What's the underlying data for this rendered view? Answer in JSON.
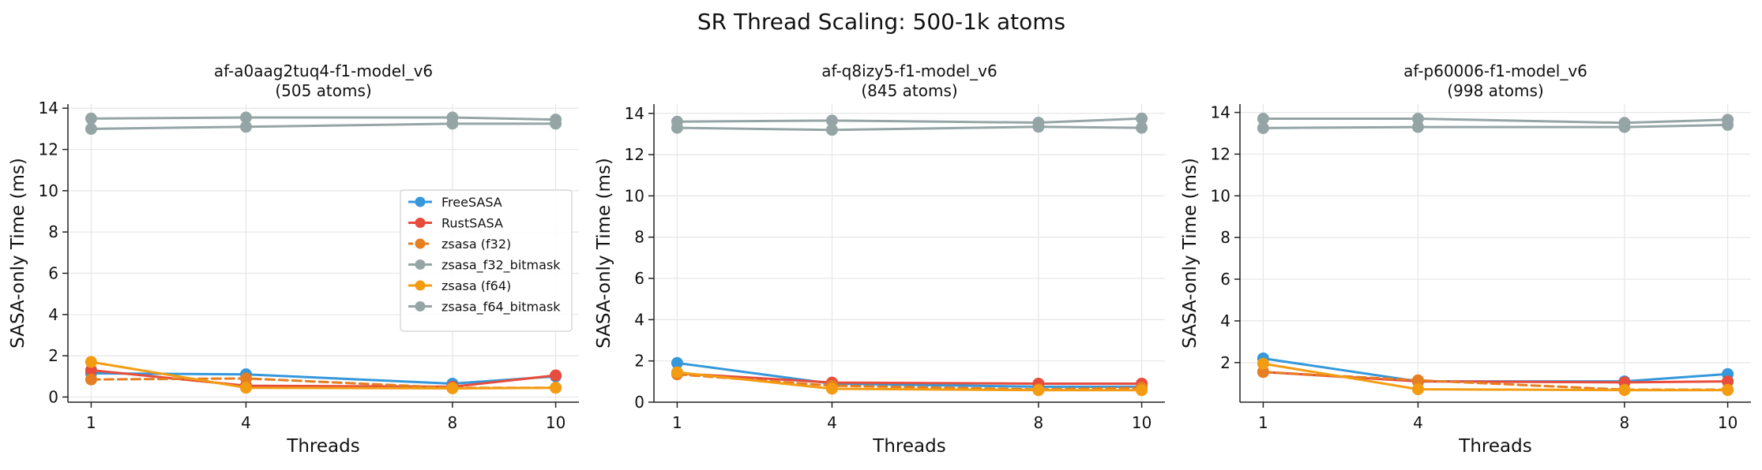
{
  "figure": {
    "title": "SR Thread Scaling: 500-1k atoms"
  },
  "chart_data": [
    {
      "type": "line",
      "title_line1": "af-a0aag2tuq4-f1-model_v6",
      "title_line2": "(505 atoms)",
      "xlabel": "Threads",
      "ylabel": "SASA-only Time (ms)",
      "x": [
        1,
        4,
        8,
        10
      ],
      "xlim": [
        0.55,
        10.45
      ],
      "ylim": [
        -0.25,
        14.2
      ],
      "yticks": [
        0,
        2,
        4,
        6,
        8,
        10,
        12,
        14
      ],
      "grid": true,
      "legend": "center-right",
      "series": [
        {
          "name": "FreeSASA",
          "color": "#3498db",
          "dash": "solid",
          "values": [
            1.15,
            1.1,
            0.65,
            1.0
          ]
        },
        {
          "name": "RustSASA",
          "color": "#e74c3c",
          "dash": "solid",
          "values": [
            1.3,
            0.55,
            0.5,
            1.05
          ]
        },
        {
          "name": "zsasa (f32)",
          "color": "#e67e22",
          "dash": "dashed",
          "values": [
            0.85,
            0.9,
            0.45,
            0.45
          ]
        },
        {
          "name": "zsasa_f32_bitmask",
          "color": "#95a5a6",
          "dash": "solid",
          "values": [
            13.0,
            13.1,
            13.25,
            13.25
          ]
        },
        {
          "name": "zsasa (f64)",
          "color": "#f39c12",
          "dash": "solid",
          "values": [
            1.7,
            0.45,
            0.42,
            0.45
          ]
        },
        {
          "name": "zsasa_f64_bitmask",
          "color": "#95a5a6",
          "dash": "solid",
          "values": [
            13.5,
            13.55,
            13.55,
            13.45
          ]
        }
      ]
    },
    {
      "type": "line",
      "title_line1": "af-q8izy5-f1-model_v6",
      "title_line2": "(845 atoms)",
      "xlabel": "Threads",
      "ylabel": "SASA-only Time (ms)",
      "x": [
        1,
        4,
        8,
        10
      ],
      "xlim": [
        0.55,
        10.45
      ],
      "ylim": [
        0.0,
        14.45
      ],
      "yticks": [
        0,
        2,
        4,
        6,
        8,
        10,
        12,
        14
      ],
      "grid": true,
      "legend": "",
      "series": [
        {
          "name": "FreeSASA",
          "color": "#3498db",
          "dash": "solid",
          "values": [
            1.9,
            0.9,
            0.75,
            0.75
          ]
        },
        {
          "name": "RustSASA",
          "color": "#e74c3c",
          "dash": "solid",
          "values": [
            1.4,
            0.95,
            0.9,
            0.9
          ]
        },
        {
          "name": "zsasa (f32)",
          "color": "#e67e22",
          "dash": "dashed",
          "values": [
            1.35,
            0.8,
            0.62,
            0.7
          ]
        },
        {
          "name": "zsasa_f32_bitmask",
          "color": "#95a5a6",
          "dash": "solid",
          "values": [
            13.3,
            13.2,
            13.35,
            13.3
          ]
        },
        {
          "name": "zsasa (f64)",
          "color": "#f39c12",
          "dash": "solid",
          "values": [
            1.45,
            0.65,
            0.58,
            0.58
          ]
        },
        {
          "name": "zsasa_f64_bitmask",
          "color": "#95a5a6",
          "dash": "solid",
          "values": [
            13.6,
            13.65,
            13.55,
            13.75
          ]
        }
      ]
    },
    {
      "type": "line",
      "title_line1": "af-p60006-f1-model_v6",
      "title_line2": "(998 atoms)",
      "xlabel": "Threads",
      "ylabel": "SASA-only Time (ms)",
      "x": [
        1,
        4,
        8,
        10
      ],
      "xlim": [
        0.55,
        10.45
      ],
      "ylim": [
        0.1,
        14.4
      ],
      "yticks": [
        2,
        4,
        6,
        8,
        10,
        12,
        14
      ],
      "grid": true,
      "legend": "",
      "series": [
        {
          "name": "FreeSASA",
          "color": "#3498db",
          "dash": "solid",
          "values": [
            2.2,
            1.1,
            1.1,
            1.45
          ]
        },
        {
          "name": "RustSASA",
          "color": "#e74c3c",
          "dash": "solid",
          "values": [
            1.55,
            1.1,
            1.05,
            1.1
          ]
        },
        {
          "name": "zsasa (f32)",
          "color": "#e67e22",
          "dash": "dashed",
          "values": [
            1.55,
            1.15,
            0.7,
            0.7
          ]
        },
        {
          "name": "zsasa_f32_bitmask",
          "color": "#95a5a6",
          "dash": "solid",
          "values": [
            13.25,
            13.3,
            13.3,
            13.4
          ]
        },
        {
          "name": "zsasa (f64)",
          "color": "#f39c12",
          "dash": "solid",
          "values": [
            1.95,
            0.72,
            0.68,
            0.68
          ]
        },
        {
          "name": "zsasa_f64_bitmask",
          "color": "#95a5a6",
          "dash": "solid",
          "values": [
            13.7,
            13.7,
            13.5,
            13.65
          ]
        }
      ]
    }
  ]
}
